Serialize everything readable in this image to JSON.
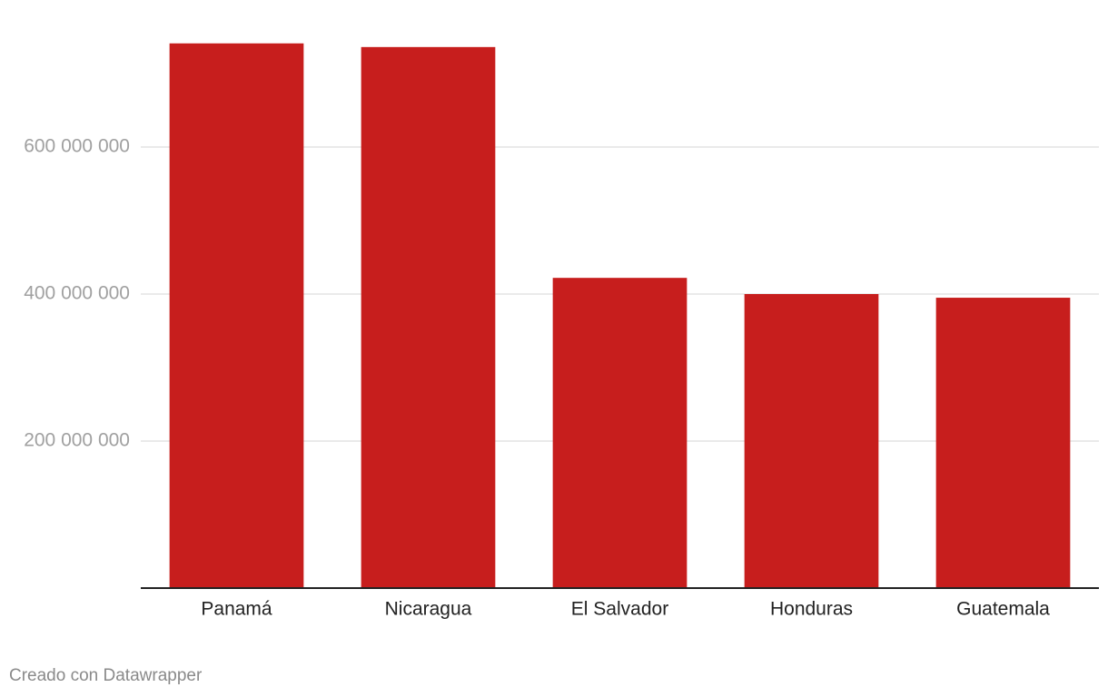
{
  "chart_data": {
    "type": "bar",
    "categories": [
      "Panamá",
      "Nicaragua",
      "El Salvador",
      "Honduras",
      "Guatemala"
    ],
    "values": [
      741000000,
      736000000,
      422000000,
      400000000,
      395000000
    ],
    "color": "#c71e1d",
    "ylim": [
      0,
      800000000
    ],
    "yticks": [
      {
        "value": 200000000,
        "label": "200 000 000"
      },
      {
        "value": 400000000,
        "label": "400 000 000"
      },
      {
        "value": 600000000,
        "label": "600 000 000"
      }
    ],
    "grid": true,
    "credit": "Creado con Datawrapper"
  }
}
